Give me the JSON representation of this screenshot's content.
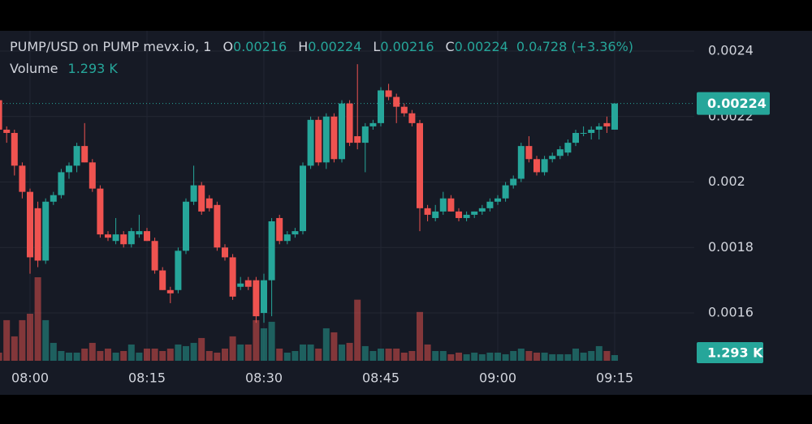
{
  "chart_data": {
    "type": "candlestick",
    "title": "PUMP/USD on PUMP mevx.io, 1",
    "ohlc_labels": [
      "O",
      "H",
      "L",
      "C"
    ],
    "change_label": "0.0₄728 (+3.36%)",
    "up_color": "#26a69a",
    "down_color": "#ef5350",
    "grid": true,
    "ylim": [
      0.001454,
      0.002462
    ],
    "yticks": [
      0.0016,
      0.0018,
      0.002,
      0.0022,
      0.0024
    ],
    "categories": [
      null,
      null,
      null,
      null,
      "08:00",
      null,
      null,
      null,
      null,
      null,
      null,
      null,
      null,
      null,
      null,
      null,
      null,
      null,
      null,
      "08:15",
      null,
      null,
      null,
      null,
      null,
      null,
      null,
      null,
      null,
      null,
      null,
      null,
      null,
      null,
      "08:30",
      null,
      null,
      null,
      null,
      null,
      null,
      null,
      null,
      null,
      null,
      null,
      null,
      null,
      null,
      "08:45",
      null,
      null,
      null,
      null,
      null,
      null,
      null,
      null,
      null,
      null,
      null,
      null,
      null,
      null,
      "09:00",
      null,
      null,
      null,
      null,
      null,
      null,
      null,
      null,
      null,
      null,
      null,
      null,
      null,
      null,
      "09:15"
    ],
    "open": [
      0.00225,
      0.00216,
      0.00215,
      0.00205,
      0.00197,
      0.00192,
      0.00176,
      0.00194,
      0.00196,
      0.00203,
      0.00205,
      0.00211,
      0.00206,
      0.00198,
      0.00184,
      0.00182,
      0.00184,
      0.00181,
      0.00184,
      0.00185,
      0.00182,
      0.00173,
      0.00167,
      0.00167,
      0.00179,
      0.00194,
      0.00199,
      0.00195,
      0.00193,
      0.0018,
      0.00177,
      0.00168,
      0.0017,
      0.0017,
      0.0016,
      0.0017,
      0.00189,
      0.00182,
      0.00184,
      0.00185,
      0.00205,
      0.00219,
      0.00206,
      0.0022,
      0.00207,
      0.00224,
      0.00214,
      0.00212,
      0.00217,
      0.00218,
      0.00228,
      0.00226,
      0.00223,
      0.00221,
      0.00218,
      0.00192,
      0.00189,
      0.00191,
      0.00195,
      0.00191,
      0.00189,
      0.0019,
      0.00191,
      0.00192,
      0.00194,
      0.00195,
      0.00199,
      0.00201,
      0.00211,
      0.00207,
      0.00203,
      0.00207,
      0.00208,
      0.00209,
      0.00212,
      0.00215,
      0.00215,
      0.00216,
      0.00218,
      0.00216
    ],
    "high": [
      0.00226,
      0.00217,
      0.00216,
      0.00206,
      0.00198,
      0.00194,
      0.00195,
      0.00197,
      0.00204,
      0.00206,
      0.00212,
      0.00218,
      0.00207,
      0.00199,
      0.00185,
      0.00189,
      0.00185,
      0.00186,
      0.0019,
      0.00186,
      0.00183,
      0.00174,
      0.00168,
      0.0018,
      0.00195,
      0.00205,
      0.002,
      0.00196,
      0.00194,
      0.00181,
      0.00178,
      0.00171,
      0.00171,
      0.00171,
      0.00172,
      0.00189,
      0.0019,
      0.00185,
      0.00186,
      0.00206,
      0.0022,
      0.0022,
      0.00221,
      0.00221,
      0.00225,
      0.00225,
      0.00236,
      0.00218,
      0.00219,
      0.00229,
      0.0023,
      0.00227,
      0.00224,
      0.00222,
      0.00219,
      0.00193,
      0.00193,
      0.00197,
      0.00196,
      0.00192,
      0.00191,
      0.00191,
      0.00193,
      0.00195,
      0.00196,
      0.002,
      0.00202,
      0.00212,
      0.00214,
      0.00208,
      0.00208,
      0.00209,
      0.00211,
      0.00213,
      0.00216,
      0.00217,
      0.00217,
      0.00218,
      0.0022,
      0.00224
    ],
    "low": [
      0.00215,
      0.00212,
      0.00202,
      0.00195,
      0.00172,
      0.00174,
      0.00175,
      0.00193,
      0.00195,
      0.00201,
      0.00203,
      0.00206,
      0.00197,
      0.00183,
      0.00182,
      0.00181,
      0.0018,
      0.0018,
      0.00183,
      0.00182,
      0.00172,
      0.00167,
      0.00163,
      0.00166,
      0.00178,
      0.00193,
      0.0019,
      0.00191,
      0.00179,
      0.00176,
      0.00164,
      0.00167,
      0.00167,
      0.00157,
      0.00157,
      0.00159,
      0.00181,
      0.00181,
      0.00183,
      0.00184,
      0.00204,
      0.00205,
      0.00204,
      0.00206,
      0.00206,
      0.00211,
      0.0021,
      0.00203,
      0.00216,
      0.00217,
      0.00225,
      0.00218,
      0.0022,
      0.00217,
      0.00185,
      0.00188,
      0.00188,
      0.0019,
      0.00191,
      0.00188,
      0.00188,
      0.00189,
      0.0019,
      0.00191,
      0.00193,
      0.00194,
      0.00198,
      0.002,
      0.00206,
      0.00202,
      0.00202,
      0.00206,
      0.00207,
      0.00208,
      0.00211,
      0.00214,
      0.00213,
      0.00213,
      0.00215,
      0.00216
    ],
    "close": [
      0.00216,
      0.00215,
      0.00205,
      0.00197,
      0.00177,
      0.00176,
      0.00194,
      0.00196,
      0.00203,
      0.00205,
      0.00211,
      0.00206,
      0.00198,
      0.00184,
      0.00183,
      0.00184,
      0.00181,
      0.00185,
      0.00185,
      0.00182,
      0.00173,
      0.00167,
      0.00166,
      0.00179,
      0.00194,
      0.00199,
      0.00191,
      0.00192,
      0.0018,
      0.00177,
      0.00165,
      0.00169,
      0.00168,
      0.00159,
      0.0017,
      0.00188,
      0.00182,
      0.00184,
      0.00185,
      0.00205,
      0.00219,
      0.00206,
      0.0022,
      0.00207,
      0.00224,
      0.00212,
      0.00212,
      0.00217,
      0.00218,
      0.00228,
      0.00226,
      0.00223,
      0.00221,
      0.00218,
      0.00192,
      0.0019,
      0.00191,
      0.00195,
      0.00191,
      0.00189,
      0.0019,
      0.00191,
      0.00192,
      0.00194,
      0.00195,
      0.00199,
      0.00201,
      0.00211,
      0.00207,
      0.00203,
      0.00207,
      0.00208,
      0.0021,
      0.00212,
      0.00215,
      0.00215,
      0.00216,
      0.00217,
      0.00217,
      0.00224
    ],
    "volume": {
      "name": "Volume",
      "last_value_label": "1.293 K",
      "values": [
        1.85,
        9.24,
        5.55,
        9.24,
        10.7,
        19.0,
        9.24,
        4.07,
        2.22,
        1.85,
        1.85,
        2.77,
        4.07,
        2.22,
        2.77,
        1.85,
        2.22,
        3.7,
        1.85,
        2.77,
        2.77,
        2.22,
        2.77,
        3.7,
        3.33,
        4.07,
        5.18,
        2.22,
        1.85,
        2.77,
        5.55,
        3.7,
        3.7,
        9.24,
        7.39,
        8.87,
        2.77,
        1.85,
        2.22,
        3.7,
        3.7,
        2.77,
        7.39,
        6.47,
        3.7,
        4.07,
        13.9,
        3.33,
        2.22,
        2.77,
        2.77,
        2.77,
        1.85,
        2.22,
        11.1,
        3.7,
        2.22,
        2.22,
        1.48,
        1.85,
        1.48,
        1.85,
        1.48,
        1.85,
        1.85,
        1.48,
        2.22,
        2.77,
        2.22,
        1.85,
        1.85,
        1.48,
        1.48,
        1.48,
        2.77,
        1.85,
        2.22,
        3.33,
        2.22,
        1.293
      ]
    }
  }
}
